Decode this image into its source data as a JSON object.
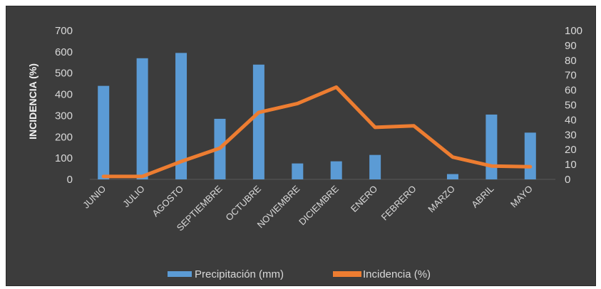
{
  "chart_data": {
    "type": "bar",
    "categories": [
      "JUNIO",
      "JULIO",
      "AGOSTO",
      "SEPTIEMBRE",
      "OCTUBRE",
      "NOVIEMBRE",
      "DICIEMBRE",
      "ENERO",
      "FEBRERO",
      "MARZO",
      "ABRIL",
      "MAYO"
    ],
    "series": [
      {
        "name": "Precipitación (mm)",
        "type": "bar",
        "axis": "left",
        "color": "#5b9bd5",
        "values": [
          440,
          570,
          595,
          285,
          540,
          75,
          85,
          115,
          0,
          25,
          305,
          220
        ]
      },
      {
        "name": "Incidencia (%)",
        "type": "line",
        "axis": "right",
        "color": "#ed7d31",
        "values": [
          2,
          2,
          12,
          21,
          45,
          51,
          62,
          35,
          36,
          15,
          9,
          8.5
        ]
      }
    ],
    "ylabel": "INCIDENCIA (%)",
    "ylim": [
      0,
      700
    ],
    "yticks": [
      "0",
      "100",
      "200",
      "300",
      "400",
      "500",
      "600",
      "700"
    ],
    "y2lim": [
      0,
      100
    ],
    "y2ticks": [
      "0",
      "10",
      "20",
      "30",
      "40",
      "50",
      "60",
      "70",
      "80",
      "90",
      "100"
    ],
    "grid": false,
    "legend_position": "bottom",
    "background": "#3c3c3c"
  }
}
